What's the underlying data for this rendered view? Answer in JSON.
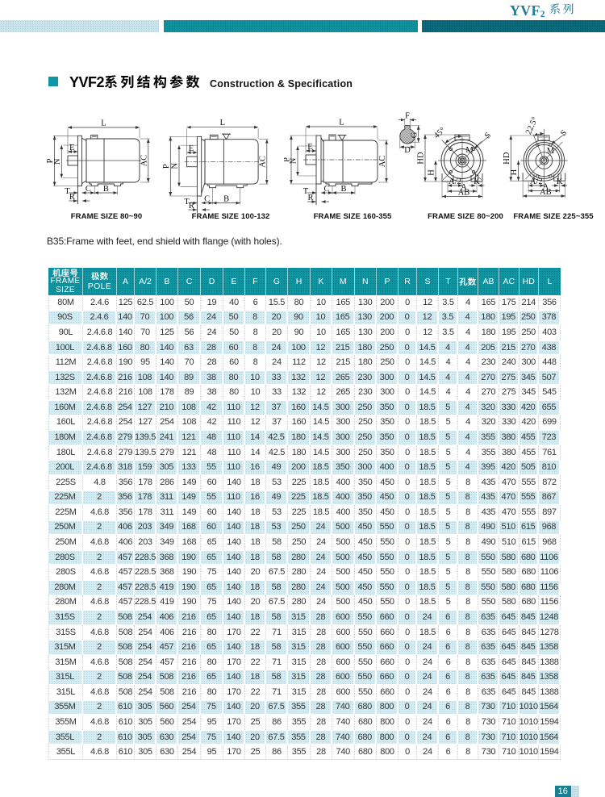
{
  "masthead": {
    "series_latin": "YVF",
    "series_sub": "2",
    "series_zh": "系列",
    "color": "#1f7e9d"
  },
  "top_bars": {
    "light": "#cbe3eb",
    "mid": "#0f939f",
    "dark": "#0a6a7b"
  },
  "section": {
    "title_latin": "YVF2",
    "title_zh": "系列结构参数",
    "title_en": "Construction & Specification",
    "bullet_color": "#0f96a6"
  },
  "note": "B35:Frame with feet, end shield with flange (with holes).",
  "figures": {
    "side1": {
      "caption": "FRAME SIZE 80~90",
      "labels": {
        "L": "L",
        "P": "P",
        "N": "N",
        "E": "E",
        "AC": "AC",
        "T": "T",
        "R": "R",
        "C": "C",
        "B": "B"
      }
    },
    "side2": {
      "caption": "FRAME SIZE 100-132",
      "labels": {
        "L": "L",
        "P": "P",
        "N": "N",
        "E": "E",
        "AC": "AC",
        "T": "T",
        "R": "R",
        "C": "C",
        "B": "B"
      }
    },
    "side3": {
      "caption": "FRAME SIZE 160-355",
      "labels": {
        "L": "L",
        "P": "P",
        "N": "N",
        "E": "E",
        "AC": "AC",
        "T": "T",
        "R": "R",
        "C": "C",
        "B": "B"
      }
    },
    "shaft_section": {
      "labels": {
        "F": "F",
        "G": "G",
        "D": "D"
      }
    },
    "front1": {
      "caption": "FRAME SIZE 80~200",
      "labels": {
        "angle": "45°",
        "S": "S",
        "M": "M",
        "HD": "HD",
        "H": "H",
        "A2": "A/2",
        "K": "K",
        "A": "A",
        "AB": "AB"
      }
    },
    "front2": {
      "caption": "FRAME SIZE 225~355",
      "labels": {
        "angle": "22.5°",
        "S": "S",
        "M": "M",
        "HD": "HD",
        "H": "H",
        "A2": "A/2",
        "K": "K",
        "A": "A",
        "AB": "AB"
      }
    }
  },
  "table": {
    "header": {
      "frame_zh": "机座号",
      "frame_en1": "FRAME",
      "frame_en2": "SIZE",
      "pole_zh": "极数",
      "pole_en": "POLE",
      "cols": [
        "A",
        "A/2",
        "B",
        "C",
        "D",
        "E",
        "F",
        "G",
        "H",
        "K",
        "M",
        "N",
        "P",
        "R",
        "S",
        "T"
      ],
      "holes_zh": "孔数",
      "cols_tail": [
        "AB",
        "AC",
        "HD",
        "L"
      ]
    },
    "rows": [
      [
        "80M",
        "2.4.6",
        "125",
        "62.5",
        "100",
        "50",
        "19",
        "40",
        "6",
        "15.5",
        "80",
        "10",
        "165",
        "130",
        "200",
        "0",
        "12",
        "3.5",
        "4",
        "165",
        "175",
        "214",
        "356"
      ],
      [
        "90S",
        "2.4.6",
        "140",
        "70",
        "100",
        "56",
        "24",
        "50",
        "8",
        "20",
        "90",
        "10",
        "165",
        "130",
        "200",
        "0",
        "12",
        "3.5",
        "4",
        "180",
        "195",
        "250",
        "378"
      ],
      [
        "90L",
        "2.4.6.8",
        "140",
        "70",
        "125",
        "56",
        "24",
        "50",
        "8",
        "20",
        "90",
        "10",
        "165",
        "130",
        "200",
        "0",
        "12",
        "3.5",
        "4",
        "180",
        "195",
        "250",
        "403"
      ],
      [
        "100L",
        "2.4.6.8",
        "160",
        "80",
        "140",
        "63",
        "28",
        "60",
        "8",
        "24",
        "100",
        "12",
        "215",
        "180",
        "250",
        "0",
        "14.5",
        "4",
        "4",
        "205",
        "215",
        "270",
        "438"
      ],
      [
        "112M",
        "2.4.6.8",
        "190",
        "95",
        "140",
        "70",
        "28",
        "60",
        "8",
        "24",
        "112",
        "12",
        "215",
        "180",
        "250",
        "0",
        "14.5",
        "4",
        "4",
        "230",
        "240",
        "300",
        "448"
      ],
      [
        "132S",
        "2.4.6.8",
        "216",
        "108",
        "140",
        "89",
        "38",
        "80",
        "10",
        "33",
        "132",
        "12",
        "265",
        "230",
        "300",
        "0",
        "14.5",
        "4",
        "4",
        "270",
        "275",
        "345",
        "507"
      ],
      [
        "132M",
        "2.4.6.8",
        "216",
        "108",
        "178",
        "89",
        "38",
        "80",
        "10",
        "33",
        "132",
        "12",
        "265",
        "230",
        "300",
        "0",
        "14.5",
        "4",
        "4",
        "270",
        "275",
        "345",
        "545"
      ],
      [
        "160M",
        "2.4.6.8",
        "254",
        "127",
        "210",
        "108",
        "42",
        "110",
        "12",
        "37",
        "160",
        "14.5",
        "300",
        "250",
        "350",
        "0",
        "18.5",
        "5",
        "4",
        "320",
        "330",
        "420",
        "655"
      ],
      [
        "160L",
        "2.4.6.8",
        "254",
        "127",
        "254",
        "108",
        "42",
        "110",
        "12",
        "37",
        "160",
        "14.5",
        "300",
        "250",
        "350",
        "0",
        "18.5",
        "5",
        "4",
        "320",
        "330",
        "420",
        "699"
      ],
      [
        "180M",
        "2.4.6.8",
        "279",
        "139.5",
        "241",
        "121",
        "48",
        "110",
        "14",
        "42.5",
        "180",
        "14.5",
        "300",
        "250",
        "350",
        "0",
        "18.5",
        "5",
        "4",
        "355",
        "380",
        "455",
        "723"
      ],
      [
        "180L",
        "2.4.6.8",
        "279",
        "139.5",
        "279",
        "121",
        "48",
        "110",
        "14",
        "42.5",
        "180",
        "14.5",
        "300",
        "250",
        "350",
        "0",
        "18.5",
        "5",
        "4",
        "355",
        "380",
        "455",
        "761"
      ],
      [
        "200L",
        "2.4.6.8",
        "318",
        "159",
        "305",
        "133",
        "55",
        "110",
        "16",
        "49",
        "200",
        "18.5",
        "350",
        "300",
        "400",
        "0",
        "18.5",
        "5",
        "4",
        "395",
        "420",
        "505",
        "810"
      ],
      [
        "225S",
        "4.8",
        "356",
        "178",
        "286",
        "149",
        "60",
        "140",
        "18",
        "53",
        "225",
        "18.5",
        "400",
        "350",
        "450",
        "0",
        "18.5",
        "5",
        "8",
        "435",
        "470",
        "555",
        "872"
      ],
      [
        "225M",
        "2",
        "356",
        "178",
        "311",
        "149",
        "55",
        "110",
        "16",
        "49",
        "225",
        "18.5",
        "400",
        "350",
        "450",
        "0",
        "18.5",
        "5",
        "8",
        "435",
        "470",
        "555",
        "867"
      ],
      [
        "225M",
        "4.6.8",
        "356",
        "178",
        "311",
        "149",
        "60",
        "140",
        "18",
        "53",
        "225",
        "18.5",
        "400",
        "350",
        "450",
        "0",
        "18.5",
        "5",
        "8",
        "435",
        "470",
        "555",
        "897"
      ],
      [
        "250M",
        "2",
        "406",
        "203",
        "349",
        "168",
        "60",
        "140",
        "18",
        "53",
        "250",
        "24",
        "500",
        "450",
        "550",
        "0",
        "18.5",
        "5",
        "8",
        "490",
        "510",
        "615",
        "968"
      ],
      [
        "250M",
        "4.6.8",
        "406",
        "203",
        "349",
        "168",
        "65",
        "140",
        "18",
        "58",
        "250",
        "24",
        "500",
        "450",
        "550",
        "0",
        "18.5",
        "5",
        "8",
        "490",
        "510",
        "615",
        "968"
      ],
      [
        "280S",
        "2",
        "457",
        "228.5",
        "368",
        "190",
        "65",
        "140",
        "18",
        "58",
        "280",
        "24",
        "500",
        "450",
        "550",
        "0",
        "18.5",
        "5",
        "8",
        "550",
        "580",
        "680",
        "1106"
      ],
      [
        "280S",
        "4.6.8",
        "457",
        "228.5",
        "368",
        "190",
        "75",
        "140",
        "20",
        "67.5",
        "280",
        "24",
        "500",
        "450",
        "550",
        "0",
        "18.5",
        "5",
        "8",
        "550",
        "580",
        "680",
        "1106"
      ],
      [
        "280M",
        "2",
        "457",
        "228.5",
        "419",
        "190",
        "65",
        "140",
        "18",
        "58",
        "280",
        "24",
        "500",
        "450",
        "550",
        "0",
        "18.5",
        "5",
        "8",
        "550",
        "580",
        "680",
        "1156"
      ],
      [
        "280M",
        "4.6.8",
        "457",
        "228.5",
        "419",
        "190",
        "75",
        "140",
        "20",
        "67.5",
        "280",
        "24",
        "500",
        "450",
        "550",
        "0",
        "18.5",
        "5",
        "8",
        "550",
        "580",
        "680",
        "1156"
      ],
      [
        "315S",
        "2",
        "508",
        "254",
        "406",
        "216",
        "65",
        "140",
        "18",
        "58",
        "315",
        "28",
        "600",
        "550",
        "660",
        "0",
        "24",
        "6",
        "8",
        "635",
        "645",
        "845",
        "1248"
      ],
      [
        "315S",
        "4.6.8",
        "508",
        "254",
        "406",
        "216",
        "80",
        "170",
        "22",
        "71",
        "315",
        "28",
        "600",
        "550",
        "660",
        "0",
        "18.5",
        "6",
        "8",
        "635",
        "645",
        "845",
        "1278"
      ],
      [
        "315M",
        "2",
        "508",
        "254",
        "457",
        "216",
        "65",
        "140",
        "18",
        "58",
        "315",
        "28",
        "600",
        "550",
        "660",
        "0",
        "24",
        "6",
        "8",
        "635",
        "645",
        "845",
        "1358"
      ],
      [
        "315M",
        "4.6.8",
        "508",
        "254",
        "457",
        "216",
        "80",
        "170",
        "22",
        "71",
        "315",
        "28",
        "600",
        "550",
        "660",
        "0",
        "24",
        "6",
        "8",
        "635",
        "645",
        "845",
        "1388"
      ],
      [
        "315L",
        "2",
        "508",
        "254",
        "508",
        "216",
        "65",
        "140",
        "18",
        "58",
        "315",
        "28",
        "600",
        "550",
        "660",
        "0",
        "24",
        "6",
        "8",
        "635",
        "645",
        "845",
        "1358"
      ],
      [
        "315L",
        "4.6.8",
        "508",
        "254",
        "508",
        "216",
        "80",
        "170",
        "22",
        "71",
        "315",
        "28",
        "600",
        "550",
        "660",
        "0",
        "24",
        "6",
        "8",
        "635",
        "645",
        "845",
        "1388"
      ],
      [
        "355M",
        "2",
        "610",
        "305",
        "560",
        "254",
        "75",
        "140",
        "20",
        "67.5",
        "355",
        "28",
        "740",
        "680",
        "800",
        "0",
        "24",
        "6",
        "8",
        "730",
        "710",
        "1010",
        "1564"
      ],
      [
        "355M",
        "4.6.8",
        "610",
        "305",
        "560",
        "254",
        "95",
        "170",
        "25",
        "86",
        "355",
        "28",
        "740",
        "680",
        "800",
        "0",
        "24",
        "6",
        "8",
        "730",
        "710",
        "1010",
        "1594"
      ],
      [
        "355L",
        "2",
        "610",
        "305",
        "630",
        "254",
        "75",
        "140",
        "20",
        "67.5",
        "355",
        "28",
        "740",
        "680",
        "800",
        "0",
        "24",
        "6",
        "8",
        "730",
        "710",
        "1010",
        "1564"
      ],
      [
        "355L",
        "4.6.8",
        "610",
        "305",
        "630",
        "254",
        "95",
        "170",
        "25",
        "86",
        "355",
        "28",
        "740",
        "680",
        "800",
        "0",
        "24",
        "6",
        "8",
        "730",
        "710",
        "1010",
        "1594"
      ]
    ],
    "colors": {
      "header_bg": "#0f95a2",
      "row_alt_bg": "#d4ebf2",
      "text": "#333333"
    }
  },
  "footer": {
    "page_number": "16",
    "box_color": "#177f90",
    "accent_color": "#c9e1e9"
  }
}
